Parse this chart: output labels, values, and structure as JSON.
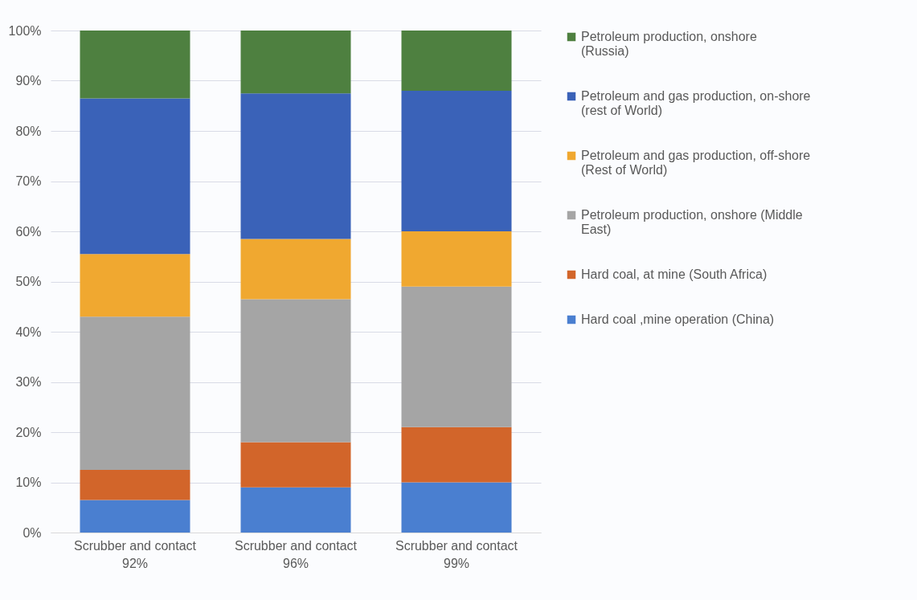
{
  "chart_data": {
    "type": "bar",
    "stacked": true,
    "categories": [
      "Scrubber and contact 92%",
      "Scrubber and contact 96%",
      "Scrubber and contact 99%"
    ],
    "series": [
      {
        "name": "Hard coal ,mine operation (China)",
        "color": "#4a7fd0",
        "values": [
          6.5,
          9,
          10
        ]
      },
      {
        "name": "Hard coal, at mine (South Africa)",
        "color": "#d2652a",
        "values": [
          6,
          9,
          11
        ]
      },
      {
        "name": "Petroleum production, onshore (Middle East)",
        "color": "#a5a5a5",
        "values": [
          30.5,
          28.5,
          28
        ]
      },
      {
        "name": "Petroleum and gas production, off-shore (Rest of World)",
        "color": "#f0a830",
        "values": [
          12.5,
          12,
          11
        ]
      },
      {
        "name": "Petroleum and gas production, on-shore (rest of World)",
        "color": "#3a62b8",
        "values": [
          31,
          29,
          28
        ]
      },
      {
        "name": "Petroleum production, onshore (Russia)",
        "color": "#4e8040",
        "values": [
          13.5,
          12.5,
          12
        ]
      }
    ],
    "ylim": [
      0,
      100
    ],
    "yticks": [
      {
        "value": 0,
        "label": "0%"
      },
      {
        "value": 10,
        "label": "10%"
      },
      {
        "value": 20,
        "label": "20%"
      },
      {
        "value": 30,
        "label": "30%"
      },
      {
        "value": 40,
        "label": "40%"
      },
      {
        "value": 50,
        "label": "50%"
      },
      {
        "value": 60,
        "label": "60%"
      },
      {
        "value": 70,
        "label": "70%"
      },
      {
        "value": 80,
        "label": "80%"
      },
      {
        "value": 90,
        "label": "90%"
      },
      {
        "value": 100,
        "label": "100%"
      }
    ],
    "grid": "y",
    "legend": "right"
  }
}
